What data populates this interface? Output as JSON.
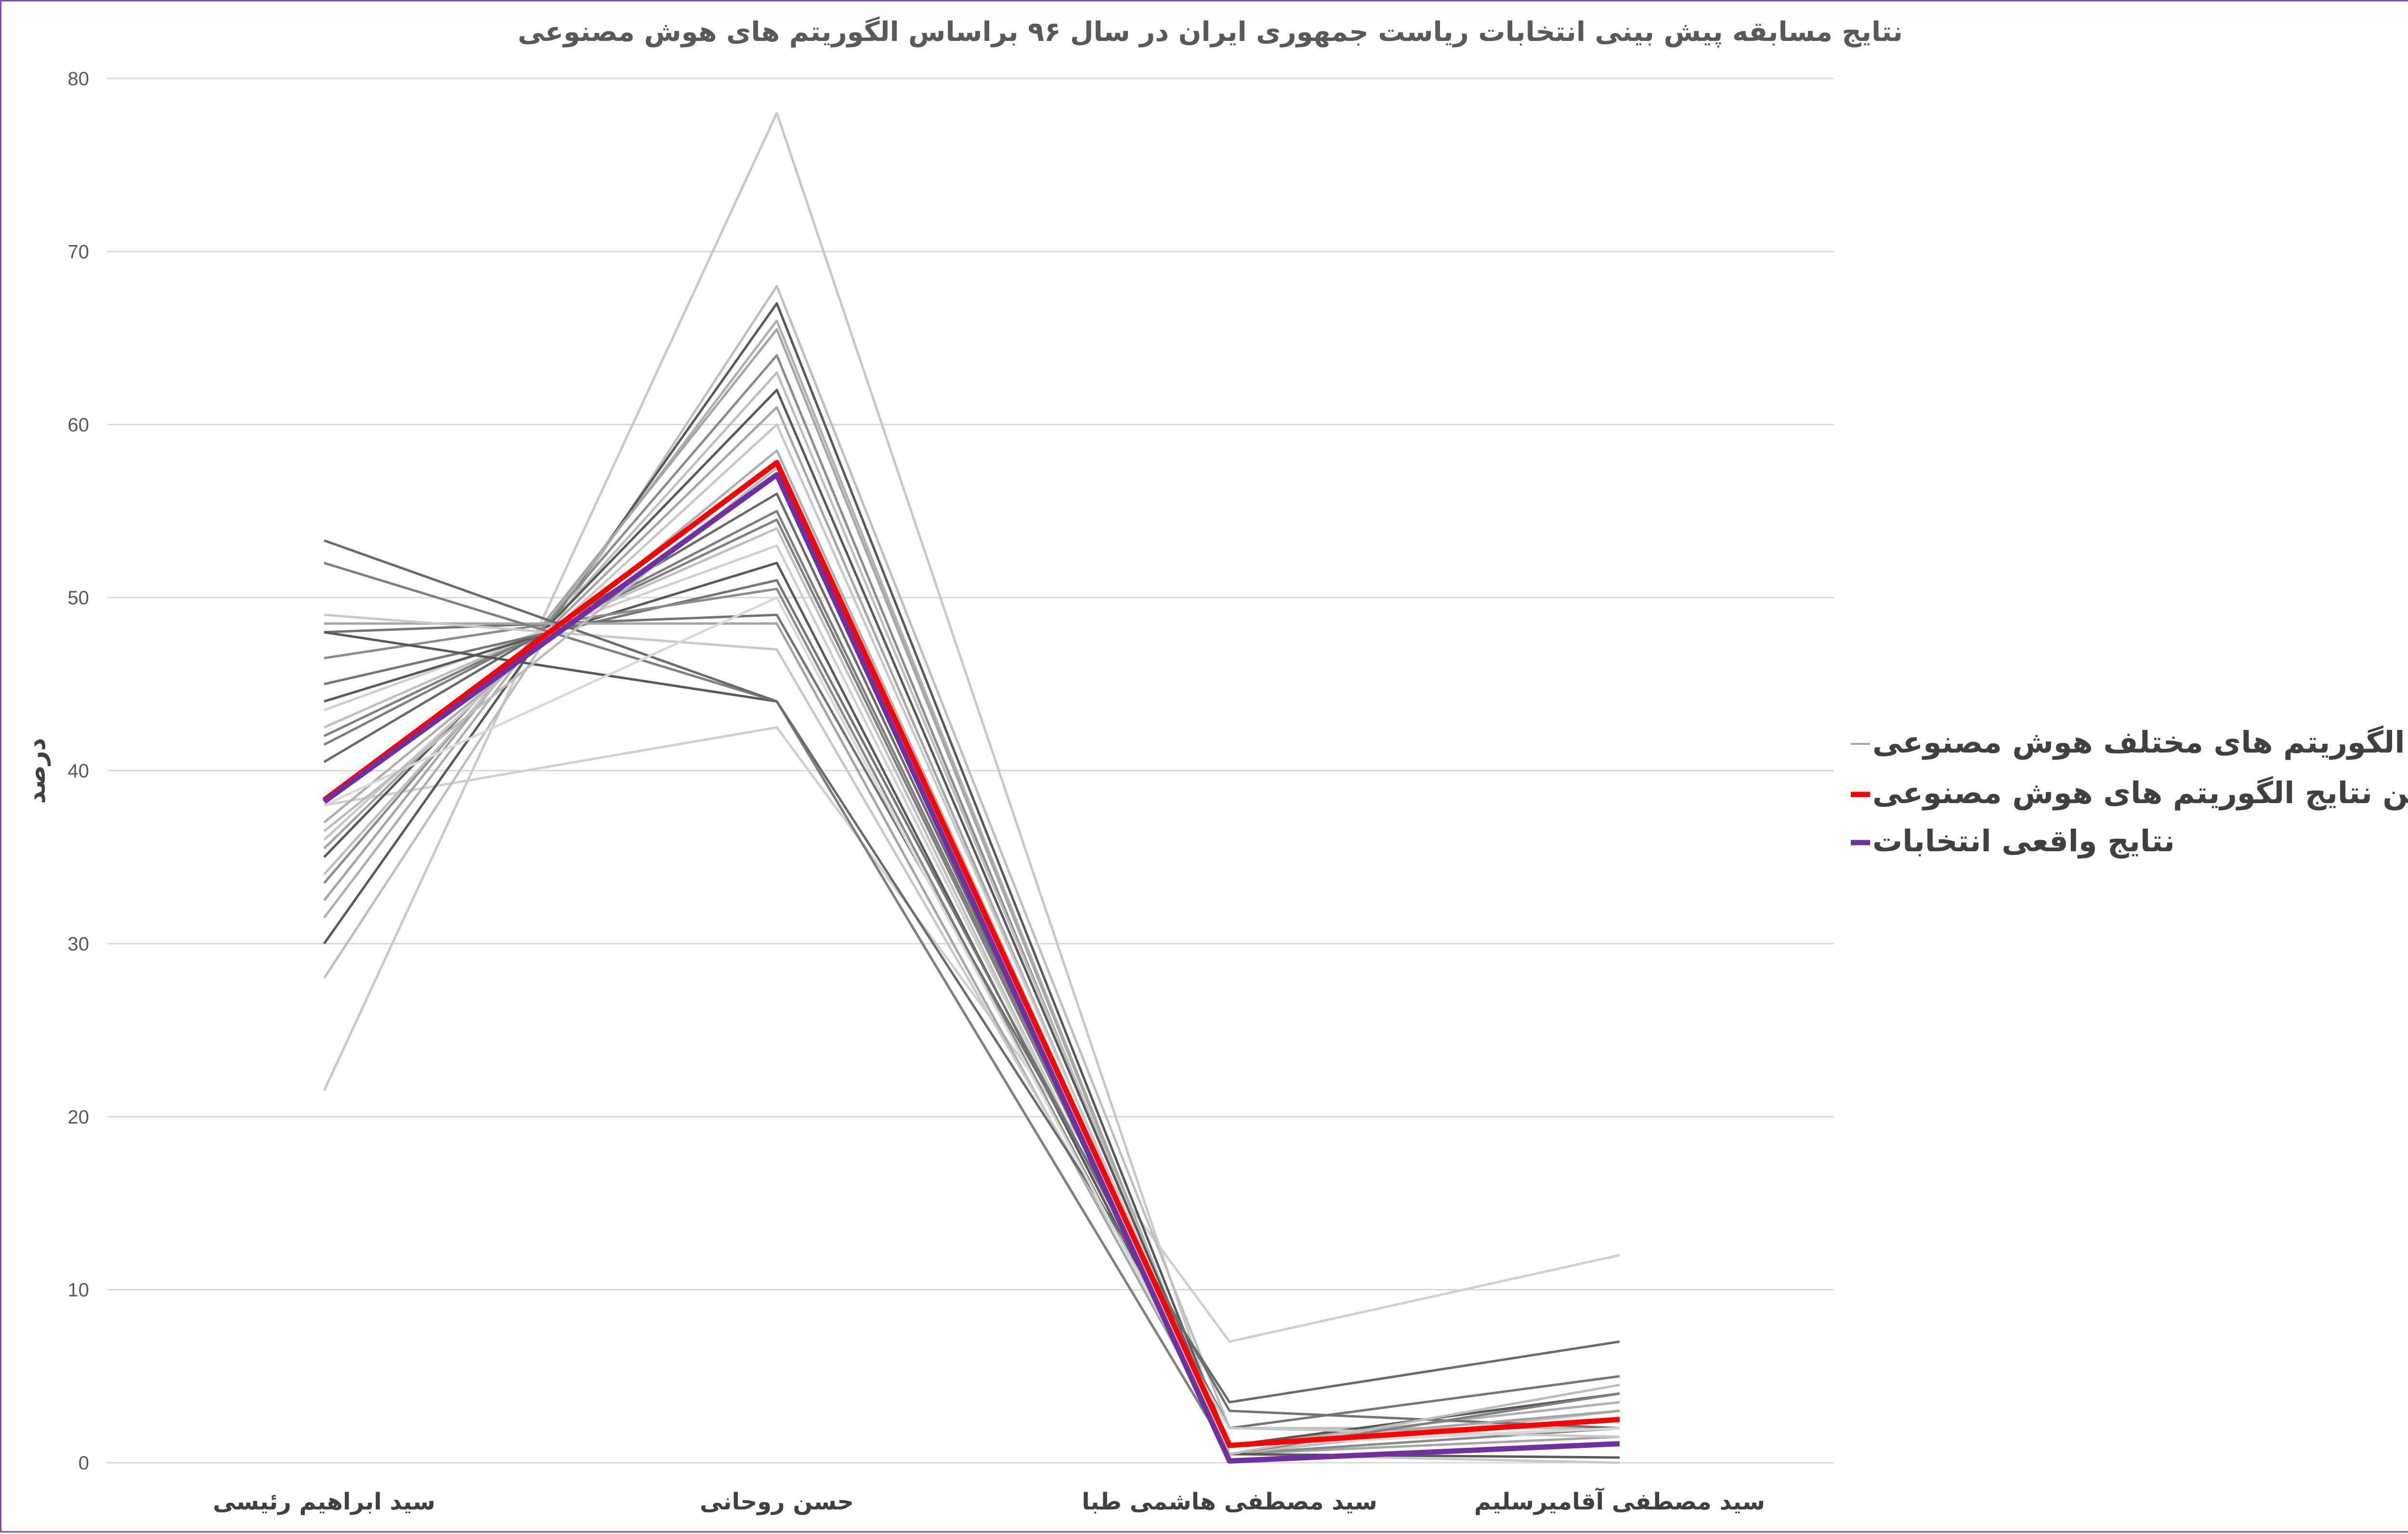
{
  "chart_data": {
    "type": "line",
    "title": "نتایج مسابقه پیش بینی انتخابات ریاست جمهوری ایران در سال ۹۶ براساس الگوریتم های هوش مصنوعی",
    "xlabel": "",
    "ylabel": "درصد",
    "ylim": [
      0,
      80
    ],
    "yticks": [
      "0",
      "10",
      "20",
      "30",
      "40",
      "50",
      "60",
      "70",
      "80"
    ],
    "grid": true,
    "legend_position": "right",
    "categories": [
      "سید ابراهیم رئیسی",
      "حسن روحانی",
      "سید مصطفی هاشمی طبا",
      "سید مصطفی آقامیرسلیم"
    ],
    "legend": [
      {
        "label": "نتایج الگوریتم های مختلف هوش مصنوعی",
        "color": "#a6a6a6"
      },
      {
        "label": "میانگین نتایج الگوریتم های هوش مصنوعی",
        "color": "#ff0000"
      },
      {
        "label": "نتایج واقعی انتخابات",
        "color": "#7030a0"
      }
    ],
    "series": [
      {
        "values": [
          21.5,
          78.0,
          0.5,
          0.0
        ],
        "color": "#c9c9c9"
      },
      {
        "values": [
          38.0,
          42.5,
          7.0,
          12.0
        ],
        "color": "#d0d0d0"
      },
      {
        "values": [
          28.0,
          68.0,
          2.0,
          2.0
        ],
        "color": "#bfbfbf"
      },
      {
        "values": [
          30.0,
          67.0,
          1.0,
          2.0
        ],
        "color": "#595959"
      },
      {
        "values": [
          31.5,
          66.0,
          0.5,
          2.0
        ],
        "color": "#b0b0b0"
      },
      {
        "values": [
          32.5,
          65.5,
          0.5,
          1.5
        ],
        "color": "#a6a6a6"
      },
      {
        "values": [
          33.5,
          64.0,
          0.5,
          2.0
        ],
        "color": "#8c8c8c"
      },
      {
        "values": [
          34.0,
          63.0,
          1.0,
          2.0
        ],
        "color": "#bfbfbf"
      },
      {
        "values": [
          35.0,
          62.0,
          1.0,
          2.0
        ],
        "color": "#595959"
      },
      {
        "values": [
          35.5,
          61.0,
          0.5,
          3.0
        ],
        "color": "#a6a6a6"
      },
      {
        "values": [
          36.0,
          60.0,
          1.0,
          3.0
        ],
        "color": "#c9c9c9"
      },
      {
        "values": [
          37.0,
          58.5,
          1.0,
          3.5
        ],
        "color": "#b0b0b0"
      },
      {
        "values": [
          40.5,
          56.0,
          0.5,
          3.0
        ],
        "color": "#6b6b6b"
      },
      {
        "values": [
          41.5,
          55.0,
          1.0,
          2.5
        ],
        "color": "#7f7f7f"
      },
      {
        "values": [
          42.0,
          54.5,
          1.0,
          2.0
        ],
        "color": "#808080"
      },
      {
        "values": [
          42.5,
          54.0,
          0.5,
          3.0
        ],
        "color": "#c0c0c0"
      },
      {
        "values": [
          43.5,
          53.0,
          1.0,
          2.0
        ],
        "color": "#d0d0d0"
      },
      {
        "values": [
          44.0,
          52.0,
          1.0,
          4.0
        ],
        "color": "#595959"
      },
      {
        "values": [
          45.0,
          51.0,
          2.0,
          5.0
        ],
        "color": "#767676"
      },
      {
        "values": [
          46.5,
          50.5,
          1.0,
          2.0
        ],
        "color": "#8c8c8c"
      },
      {
        "values": [
          48.0,
          49.0,
          3.0,
          2.0
        ],
        "color": "#737373"
      },
      {
        "values": [
          48.5,
          48.5,
          1.0,
          3.0
        ],
        "color": "#a6a6a6"
      },
      {
        "values": [
          49.0,
          47.0,
          2.0,
          1.5
        ],
        "color": "#c9c9c9"
      },
      {
        "values": [
          48.0,
          44.0,
          0.5,
          0.3
        ],
        "color": "#595959"
      },
      {
        "values": [
          52.0,
          44.0,
          0.5,
          4.0
        ],
        "color": "#808080"
      },
      {
        "values": [
          53.3,
          44.0,
          3.5,
          7.0
        ],
        "color": "#6b6b6b"
      },
      {
        "values": [
          38.0,
          50.0,
          1.0,
          2.0
        ],
        "color": "#d9d9d9"
      },
      {
        "values": [
          36.5,
          57.5,
          0.5,
          4.5
        ],
        "color": "#bdbdbd"
      }
    ],
    "average": {
      "values": [
        38.3,
        57.8,
        1.0,
        2.5
      ],
      "color": "#ff0000"
    },
    "actual": {
      "values": [
        38.2,
        57.1,
        0.1,
        1.1
      ],
      "color": "#7030a0"
    }
  }
}
